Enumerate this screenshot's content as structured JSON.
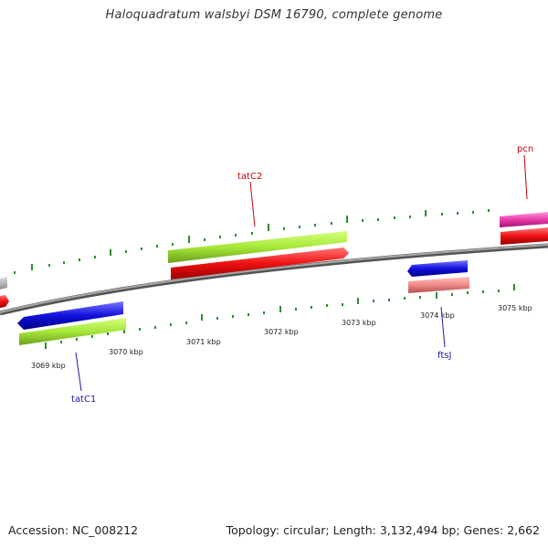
{
  "title": "Haloquadratum walsbyi DSM 16790, complete genome",
  "footer": {
    "accession": "Accession: NC_008212",
    "summary": "Topology: circular; Length: 3,132,494 bp; Genes: 2,662"
  },
  "scale": {
    "ticks_outer": [
      "3072 kbp"
    ],
    "labels": [
      "3069 kbp",
      "3070 kbp",
      "3071 kbp",
      "3072 kbp",
      "3073 kbp",
      "3074 kbp",
      "3075 kbp"
    ]
  },
  "genes": [
    {
      "name": "tatC2",
      "color": "#cc0000"
    },
    {
      "name": "tatC1",
      "color": "#1a1aaa"
    },
    {
      "name": "ftsJ",
      "color": "#1a1aaa"
    },
    {
      "name": "pcn",
      "color": "#cc0000"
    }
  ],
  "colors": {
    "backbone": "#808080",
    "tick": "#2e8b2e",
    "red": "#ee1111",
    "green": "#aaee33",
    "blue": "#1111dd",
    "pink": "#e83aa8",
    "salmon": "#f08888",
    "gray": "#b0b0b0"
  }
}
